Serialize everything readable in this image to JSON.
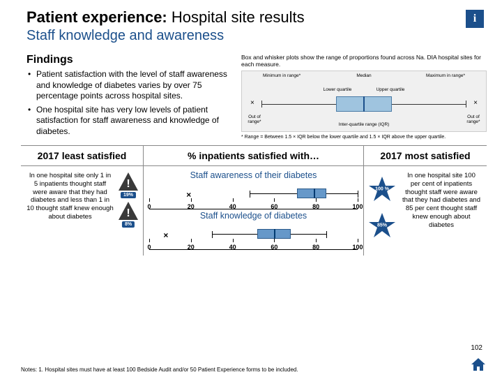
{
  "header": {
    "title_bold": "Patient experience:",
    "title_light": "Hospital site results",
    "subtitle": "Staff knowledge and awareness",
    "info_glyph": "i"
  },
  "findings": {
    "title": "Findings",
    "items": [
      "Patient satisfaction with the level of staff awareness and knowledge of diabetes varies by over 75 percentage points across hospital sites.",
      "One hospital site has very low levels of patient satisfaction for staff awareness and knowledge of diabetes."
    ]
  },
  "boxplot_legend": {
    "description": "Box and whisker plots show the range of proportions found across Na. DIA hospital sites for each measure.",
    "labels": {
      "min": "Minimum in range*",
      "median": "Median",
      "max": "Maximum in range*",
      "lq": "Lower quartile",
      "uq": "Upper quartile",
      "oor_l": "Out of range*",
      "oor_r": "Out of range*",
      "iqr": "Inter-quartile range (IQR)"
    },
    "footnote": "* Range = Between 1.5 × IQR below the lower quartile and 1.5 × IQR above the upper quartile."
  },
  "section_headers": {
    "left": "2017 least satisfied",
    "mid": "% inpatients satisfied with…",
    "right": "2017 most satisfied"
  },
  "least": {
    "text": "In one hospital site only 1 in 5 inpatients thought staff were aware that they had diabetes and less than 1 in 10 thought staff knew enough about diabetes",
    "warn1": "19%",
    "warn2": "8%"
  },
  "most": {
    "text": "In one hospital site 100 per cent of inpatients thought staff were aware that they had diabetes and 85 per cent thought staff knew enough about diabetes",
    "star1": "100 %",
    "star2": "85%"
  },
  "plots": {
    "axis": {
      "min": 0,
      "max": 100,
      "ticks": [
        0,
        20,
        40,
        60,
        80,
        100
      ]
    },
    "series": [
      {
        "title": "Staff awareness of their diabetes",
        "outlier_low": 19,
        "whisker_low": 48,
        "q1": 71,
        "median": 79,
        "q3": 85,
        "whisker_high": 100,
        "box_color": "#6698c9",
        "median_color": "#003a70"
      },
      {
        "title": "Staff knowledge of diabetes",
        "outlier_low": 8,
        "whisker_low": 30,
        "q1": 52,
        "median": 60,
        "q3": 68,
        "whisker_high": 85,
        "box_color": "#6698c9",
        "median_color": "#003a70"
      }
    ]
  },
  "footer": {
    "note": "Notes: 1. Hospital sites must have at least 100 Bedside Audit and/or 50 Patient Experience forms to be included.",
    "page": "102"
  },
  "colors": {
    "brand": "#1b4f8b",
    "box": "#6698c9",
    "bg": "#ffffff"
  }
}
